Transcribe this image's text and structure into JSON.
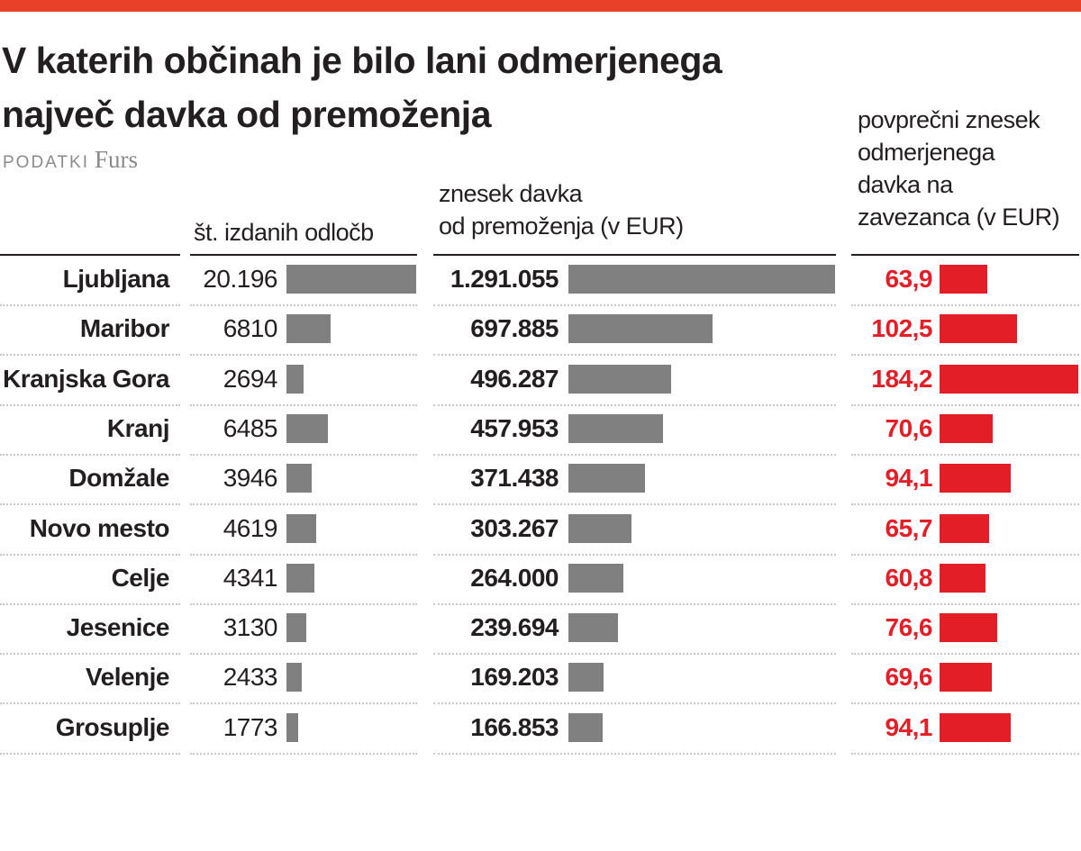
{
  "title_lines": [
    "V katerih občinah je bilo lani odmerjenega",
    "največ davka od premoženja"
  ],
  "source": {
    "label": "PODATKI",
    "value": "Furs"
  },
  "colors": {
    "topbar": "#e9402a",
    "gray_bar": "#808080",
    "red_bar": "#e41e26",
    "red_text": "#e41e26"
  },
  "chart_data": {
    "type": "table",
    "title": "V katerih občinah je bilo lani odmerjenega največ davka od premoženja",
    "columns": [
      {
        "header_lines": [
          "št. izdanih odločb"
        ]
      },
      {
        "header_lines": [
          "znesek davka",
          "od premoženja (v EUR)"
        ]
      },
      {
        "header_lines": [
          "povprečni znesek",
          "odmerjenega",
          "davka na",
          "zavezanca (v EUR)"
        ]
      }
    ],
    "rows": [
      {
        "name": "Ljubljana",
        "decisions": "20.196",
        "decisions_value": 20196,
        "amount": "1.291.055",
        "amount_value": 1291055,
        "avg": "63,9",
        "avg_value": 63.9
      },
      {
        "name": "Maribor",
        "decisions": "6810",
        "decisions_value": 6810,
        "amount": "697.885",
        "amount_value": 697885,
        "avg": "102,5",
        "avg_value": 102.5
      },
      {
        "name": "Kranjska Gora",
        "decisions": "2694",
        "decisions_value": 2694,
        "amount": "496.287",
        "amount_value": 496287,
        "avg": "184,2",
        "avg_value": 184.2
      },
      {
        "name": "Kranj",
        "decisions": "6485",
        "decisions_value": 6485,
        "amount": "457.953",
        "amount_value": 457953,
        "avg": "70,6",
        "avg_value": 70.6
      },
      {
        "name": "Domžale",
        "decisions": "3946",
        "decisions_value": 3946,
        "amount": "371.438",
        "amount_value": 371438,
        "avg": "94,1",
        "avg_value": 94.1
      },
      {
        "name": "Novo mesto",
        "decisions": "4619",
        "decisions_value": 4619,
        "amount": "303.267",
        "amount_value": 303267,
        "avg": "65,7",
        "avg_value": 65.7
      },
      {
        "name": "Celje",
        "decisions": "4341",
        "decisions_value": 4341,
        "amount": "264.000",
        "amount_value": 264000,
        "avg": "60,8",
        "avg_value": 60.8
      },
      {
        "name": "Jesenice",
        "decisions": "3130",
        "decisions_value": 3130,
        "amount": "239.694",
        "amount_value": 239694,
        "avg": "76,6",
        "avg_value": 76.6
      },
      {
        "name": "Velenje",
        "decisions": "2433",
        "decisions_value": 2433,
        "amount": "169.203",
        "amount_value": 169203,
        "avg": "69,6",
        "avg_value": 69.6
      },
      {
        "name": "Grosuplje",
        "decisions": "1773",
        "decisions_value": 1773,
        "amount": "166.853",
        "amount_value": 166853,
        "avg": "94,1",
        "avg_value": 94.1
      }
    ]
  }
}
